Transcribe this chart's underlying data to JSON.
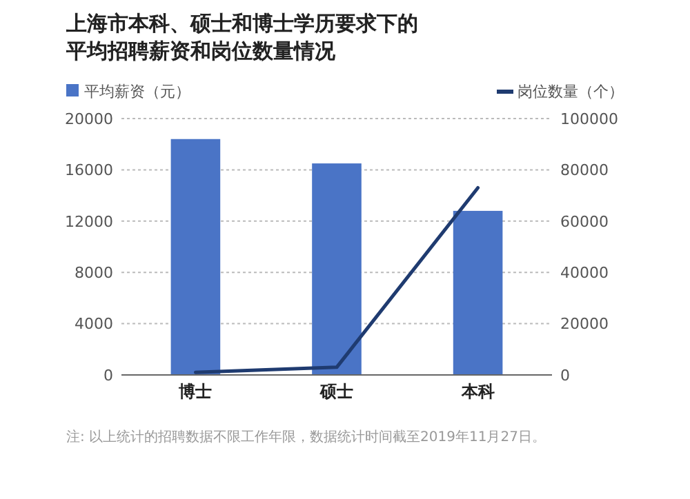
{
  "chart_data": {
    "type": "bar",
    "title": "上海市本科、硕士和博士学历要求下的平均招聘薪资和岗位数量情况",
    "categories": [
      "博士",
      "硕士",
      "本科"
    ],
    "series": [
      {
        "name": "平均薪资（元）",
        "color": "#4a74c6",
        "values": [
          18400,
          16500,
          12800
        ]
      },
      {
        "name": "岗位数量（个）",
        "color": "#1f3b70",
        "type": "line",
        "axis": "y2",
        "values": [
          1000,
          3000,
          73000
        ]
      }
    ],
    "ylim": [
      0,
      20000
    ],
    "yticks": [
      0,
      4000,
      8000,
      12000,
      16000,
      20000
    ],
    "y2lim": [
      0,
      100000
    ],
    "y2ticks": [
      0,
      20000,
      40000,
      60000,
      80000,
      100000
    ],
    "grid": "y",
    "legend": "top",
    "marker": "none",
    "line_style": "solid",
    "annotations": [
      "注: 以上统计的招聘数据不限工作年限，数据统计时间截至2019年11月27日。"
    ]
  }
}
